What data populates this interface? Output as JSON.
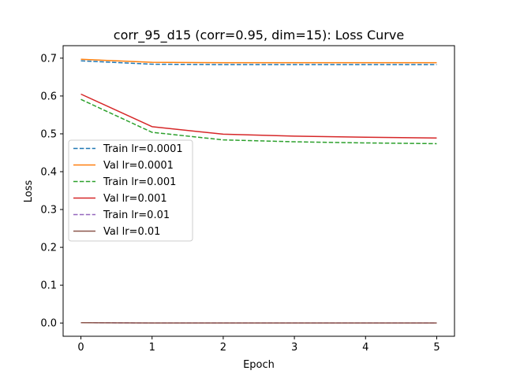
{
  "chart_data": {
    "type": "line",
    "title": "corr_95_d15 (corr=0.95, dim=15): Loss Curve",
    "xlabel": "Epoch",
    "ylabel": "Loss",
    "x": [
      0,
      1,
      2,
      3,
      4,
      5
    ],
    "xlim": [
      -0.25,
      5.25
    ],
    "ylim": [
      -0.035,
      0.733
    ],
    "xticks": [
      "0",
      "1",
      "2",
      "3",
      "4",
      "5"
    ],
    "yticks": [
      "0.0",
      "0.1",
      "0.2",
      "0.3",
      "0.4",
      "0.5",
      "0.6",
      "0.7"
    ],
    "grid": false,
    "legend_position": "center-left",
    "series": [
      {
        "name": "Train lr=0.0001",
        "color": "#1f77b4",
        "dash": true,
        "values": [
          0.693,
          0.684,
          0.683,
          0.683,
          0.683,
          0.683
        ]
      },
      {
        "name": "Val lr=0.0001",
        "color": "#ff7f0e",
        "dash": false,
        "values": [
          0.697,
          0.689,
          0.688,
          0.688,
          0.688,
          0.688
        ]
      },
      {
        "name": "Train lr=0.001",
        "color": "#2ca02c",
        "dash": true,
        "values": [
          0.591,
          0.504,
          0.484,
          0.479,
          0.476,
          0.474
        ]
      },
      {
        "name": "Val lr=0.001",
        "color": "#d62728",
        "dash": false,
        "values": [
          0.605,
          0.519,
          0.499,
          0.494,
          0.491,
          0.489
        ]
      },
      {
        "name": "Train lr=0.01",
        "color": "#9467bd",
        "dash": true,
        "values": [
          0.001,
          0.0,
          0.0,
          0.0,
          0.0,
          0.0
        ]
      },
      {
        "name": "Val lr=0.01",
        "color": "#8c564b",
        "dash": false,
        "values": [
          0.001,
          0.0,
          0.0,
          0.0,
          0.0,
          0.0
        ]
      }
    ]
  }
}
